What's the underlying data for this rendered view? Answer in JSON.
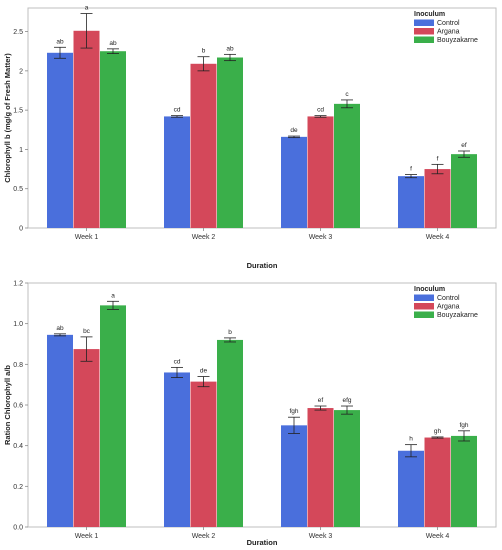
{
  "chart_data": [
    {
      "type": "bar",
      "categories": [
        "Week 1",
        "Week 2",
        "Week 3",
        "Week 4"
      ],
      "xlabel": "Duration",
      "ylabel": "Chlorophyll b (mg/g of Fresh Matter)",
      "ylim": [
        0,
        2.8
      ],
      "yticks": [
        "0",
        "0.5",
        "1",
        "1.5",
        "2",
        "2.5"
      ],
      "ytick_values": [
        0,
        0.5,
        1,
        1.5,
        2,
        2.5
      ],
      "legend": {
        "title": "Inoculum",
        "position": "top-right"
      },
      "series": [
        {
          "name": "Control",
          "color": "#4a6fdc",
          "values": [
            2.23,
            1.42,
            1.16,
            0.66
          ],
          "errors": [
            0.07,
            0.01,
            0.01,
            0.02
          ],
          "letters": [
            "ab",
            "cd",
            "de",
            "f"
          ]
        },
        {
          "name": "Argana",
          "color": "#d4485a",
          "values": [
            2.51,
            2.09,
            1.42,
            0.75
          ],
          "errors": [
            0.22,
            0.09,
            0.01,
            0.06
          ],
          "letters": [
            "a",
            "b",
            "cd",
            "f"
          ]
        },
        {
          "name": "Bouyzakarne",
          "color": "#3aaf4a",
          "values": [
            2.25,
            2.17,
            1.58,
            0.94
          ],
          "errors": [
            0.03,
            0.04,
            0.05,
            0.04
          ],
          "letters": [
            "ab",
            "ab",
            "c",
            "ef"
          ]
        }
      ]
    },
    {
      "type": "bar",
      "categories": [
        "Week 1",
        "Week 2",
        "Week 3",
        "Week 4"
      ],
      "xlabel": "Duration",
      "ylabel": "Ration Chlorophyll a/b",
      "ylim": [
        0,
        1.2
      ],
      "yticks": [
        "0.0",
        "0.2",
        "0.4",
        "0.6",
        "0.8",
        "1.0",
        "1.2"
      ],
      "ytick_values": [
        0,
        0.2,
        0.4,
        0.6,
        0.8,
        1.0,
        1.2
      ],
      "legend": {
        "title": "Inoculum",
        "position": "top-right"
      },
      "series": [
        {
          "name": "Control",
          "color": "#4a6fdc",
          "values": [
            0.945,
            0.76,
            0.5,
            0.375
          ],
          "errors": [
            0.005,
            0.025,
            0.04,
            0.03
          ],
          "letters": [
            "ab",
            "cd",
            "fgh",
            "h"
          ]
        },
        {
          "name": "Argana",
          "color": "#d4485a",
          "values": [
            0.875,
            0.715,
            0.585,
            0.44
          ],
          "errors": [
            0.06,
            0.025,
            0.01,
            0.003
          ],
          "letters": [
            "bc",
            "de",
            "ef",
            "gh"
          ]
        },
        {
          "name": "Bouyzakarne",
          "color": "#3aaf4a",
          "values": [
            1.09,
            0.92,
            0.575,
            0.448
          ],
          "errors": [
            0.02,
            0.01,
            0.02,
            0.025
          ],
          "letters": [
            "a",
            "b",
            "efg",
            "fgh"
          ]
        }
      ]
    }
  ]
}
